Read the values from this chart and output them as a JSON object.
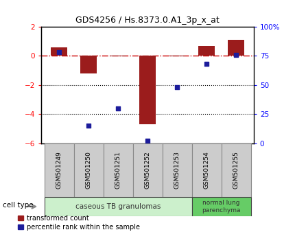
{
  "title": "GDS4256 / Hs.8373.0.A1_3p_x_at",
  "samples": [
    "GSM501249",
    "GSM501250",
    "GSM501251",
    "GSM501252",
    "GSM501253",
    "GSM501254",
    "GSM501255"
  ],
  "transformed_count": [
    0.6,
    -1.2,
    -0.05,
    -4.7,
    -0.05,
    0.7,
    1.1
  ],
  "percentile_rank": [
    78,
    15,
    30,
    2,
    48,
    68,
    76
  ],
  "ylim_left": [
    -6,
    2
  ],
  "ylim_right": [
    0,
    100
  ],
  "bar_color": "#9b1c1c",
  "dot_color": "#1c1c9b",
  "dashed_line_color": "#cc0000",
  "group0_label": "caseous TB granulomas",
  "group0_color": "#ccf0cc",
  "group0_samples": [
    0,
    1,
    2,
    3,
    4
  ],
  "group1_label": "normal lung\nparenchyma",
  "group1_color": "#66cc66",
  "group1_samples": [
    5,
    6
  ],
  "legend_bar_label": "transformed count",
  "legend_dot_label": "percentile rank within the sample",
  "cell_type_label": "cell type",
  "label_box_color": "#cccccc",
  "label_box_edge": "#888888"
}
